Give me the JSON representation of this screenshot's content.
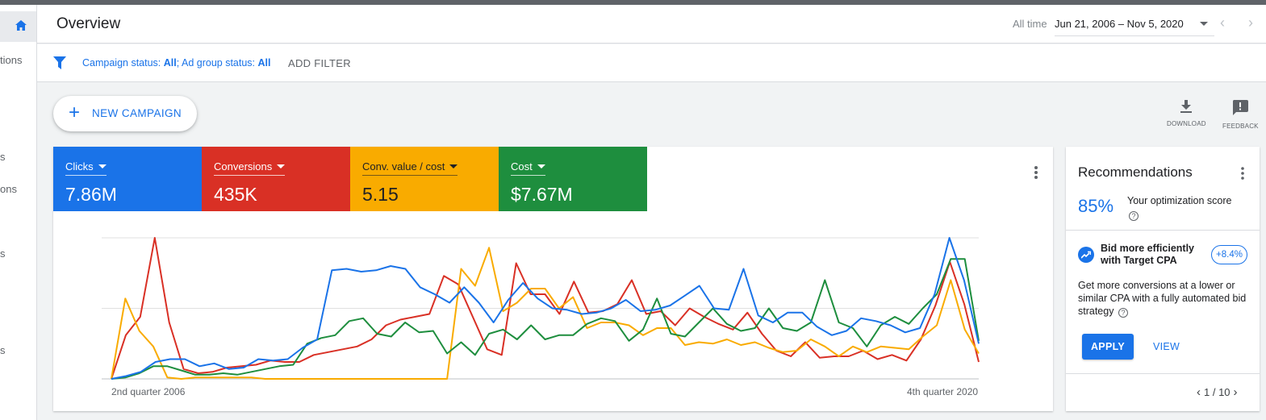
{
  "header": {
    "title": "Overview",
    "date_preset": "All time",
    "date_range": "Jun 21, 2006 – Nov 5, 2020"
  },
  "leftnav": {
    "fragments": [
      "tions",
      "s",
      "ons",
      "s",
      "s"
    ]
  },
  "filter": {
    "campaign_label": "Campaign status: ",
    "campaign_value": "All",
    "adgroup_label": "; Ad group status: ",
    "adgroup_value": "All",
    "add_filter": "ADD FILTER"
  },
  "toolbar": {
    "new_campaign": "NEW CAMPAIGN",
    "download": "DOWNLOAD",
    "feedback": "FEEDBACK"
  },
  "metrics": [
    {
      "name": "Clicks",
      "value": "7.86M",
      "color": "#1a73e8"
    },
    {
      "name": "Conversions",
      "value": "435K",
      "color": "#d93025"
    },
    {
      "name": "Conv. value / cost",
      "value": "5.15",
      "color": "#f9ab00"
    },
    {
      "name": "Cost",
      "value": "$7.67M",
      "color": "#1e8e3e"
    }
  ],
  "chart_data": {
    "type": "line",
    "x_start_label": "2nd quarter 2006",
    "x_end_label": "4th quarter 2020",
    "ylim": [
      0,
      100
    ],
    "gridlines": 3,
    "series": [
      {
        "name": "Clicks",
        "color": "#1a73e8",
        "values": [
          0,
          2,
          5,
          12,
          14,
          14,
          9,
          11,
          7,
          8,
          14,
          13,
          14,
          22,
          28,
          77,
          78,
          76,
          77,
          80,
          78,
          65,
          60,
          54,
          65,
          54,
          40,
          56,
          68,
          57,
          50,
          49,
          46,
          47,
          50,
          56,
          48,
          49,
          52,
          59,
          66,
          50,
          49,
          78,
          45,
          40,
          47,
          47,
          37,
          31,
          34,
          43,
          41,
          38,
          33,
          36,
          60,
          100,
          70,
          25
        ]
      },
      {
        "name": "Conversions",
        "color": "#d93025",
        "values": [
          0,
          31,
          44,
          100,
          40,
          7,
          4,
          5,
          8,
          9,
          10,
          13,
          12,
          12,
          17,
          19,
          21,
          23,
          28,
          38,
          42,
          44,
          46,
          73,
          67,
          44,
          21,
          17,
          82,
          60,
          60,
          46,
          69,
          47,
          48,
          53,
          70,
          46,
          48,
          38,
          50,
          44,
          39,
          35,
          47,
          32,
          20,
          16,
          26,
          15,
          16,
          16,
          20,
          14,
          17,
          13,
          28,
          52,
          83,
          53,
          12
        ]
      },
      {
        "name": "Conv. value / cost",
        "color": "#f9ab00",
        "values": [
          0,
          57,
          34,
          23,
          1,
          0,
          1,
          1,
          1,
          1,
          1,
          0,
          0,
          0,
          0,
          0,
          0,
          0,
          0,
          0,
          0,
          0,
          0,
          0,
          0,
          78,
          66,
          93,
          48,
          54,
          64,
          64,
          50,
          58,
          36,
          40,
          40,
          38,
          31,
          36,
          36,
          24,
          26,
          25,
          28,
          24,
          26,
          22,
          19,
          20,
          28,
          23,
          16,
          23,
          19,
          23,
          22,
          21,
          30,
          38,
          70,
          35,
          18
        ]
      },
      {
        "name": "Cost",
        "color": "#1e8e3e",
        "values": [
          0,
          1,
          4,
          9,
          9,
          6,
          3,
          3,
          4,
          3,
          5,
          7,
          9,
          10,
          25,
          29,
          31,
          41,
          43,
          32,
          30,
          40,
          33,
          34,
          18,
          26,
          17,
          32,
          35,
          28,
          38,
          28,
          31,
          31,
          39,
          43,
          41,
          27,
          35,
          57,
          32,
          30,
          40,
          50,
          39,
          34,
          36,
          50,
          36,
          34,
          40,
          70,
          40,
          36,
          23,
          38,
          44,
          39,
          50,
          60,
          85,
          85,
          27
        ]
      }
    ]
  },
  "recommendations": {
    "title": "Recommendations",
    "score": "85%",
    "score_label": "Your optimization score",
    "item_title": "Bid more efficiently with Target CPA",
    "item_lift": "+8.4%",
    "item_body": "Get more conversions at a lower or similar CPA with a fully automated bid strategy",
    "apply": "APPLY",
    "view": "VIEW",
    "pager": "1 / 10"
  }
}
